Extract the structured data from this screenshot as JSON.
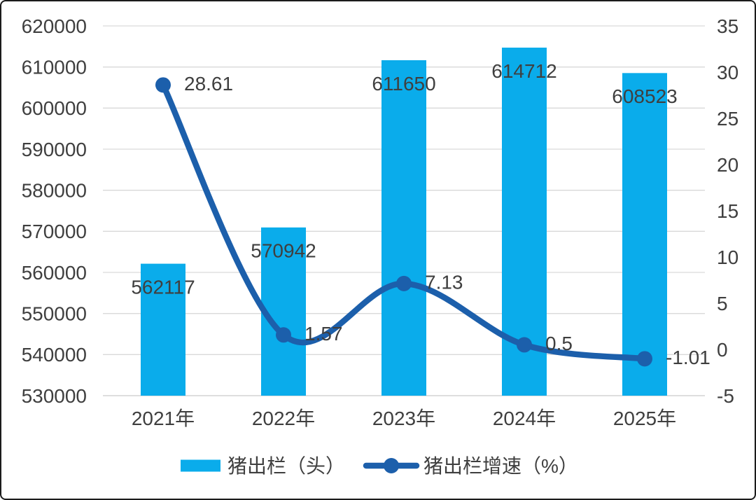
{
  "chart_data": {
    "type": "combo",
    "title": "",
    "categories": [
      "2021年",
      "2022年",
      "2023年",
      "2024年",
      "2025年"
    ],
    "series": [
      {
        "name": "猪出栏（头）",
        "type": "bar",
        "axis": "left",
        "values": [
          562117,
          570942,
          611650,
          614712,
          608523
        ],
        "labels": [
          "562117",
          "570942",
          "611650",
          "614712",
          "608523"
        ],
        "color": "#0aaceb"
      },
      {
        "name": "猪出栏增速（%）",
        "type": "line",
        "axis": "right",
        "values": [
          28.61,
          1.57,
          7.13,
          0.5,
          -1.01
        ],
        "labels": [
          "28.61",
          "1.57",
          "7.13",
          "0.5",
          "-1.01"
        ],
        "color": "#1c5fab"
      }
    ],
    "left_axis": {
      "min": 530000,
      "max": 620000,
      "step": 10000,
      "ticks": [
        "530000",
        "540000",
        "550000",
        "560000",
        "570000",
        "580000",
        "590000",
        "600000",
        "610000",
        "620000"
      ]
    },
    "right_axis": {
      "min": -5,
      "max": 35,
      "step": 5,
      "ticks": [
        "-5",
        "0",
        "5",
        "10",
        "15",
        "20",
        "25",
        "30",
        "35"
      ]
    },
    "grid": true,
    "legend_position": "bottom",
    "colors": {
      "text": "#3f3f3f",
      "gridline": "#d9d9d9",
      "axis_line": "#c9c9c9",
      "background": "#ffffff",
      "border": "#1b1b1b"
    }
  }
}
